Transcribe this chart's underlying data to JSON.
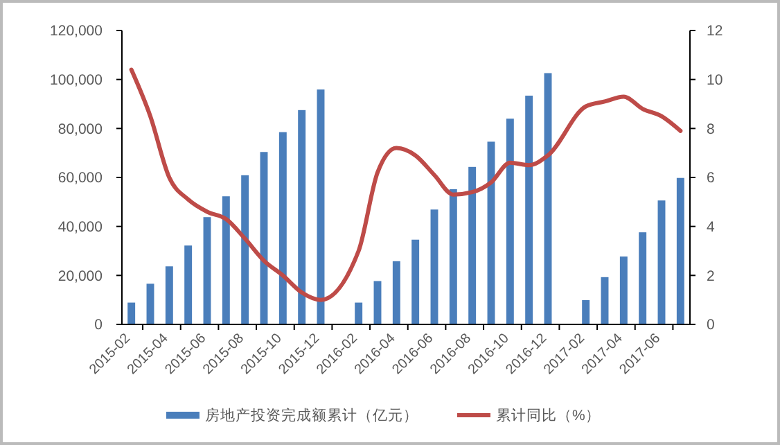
{
  "chart_data": {
    "type": "bar",
    "categories": [
      "2015-02",
      null,
      "2015-04",
      null,
      "2015-06",
      null,
      "2015-08",
      null,
      "2015-10",
      null,
      "2015-12",
      null,
      "2016-02",
      null,
      "2016-04",
      null,
      "2016-06",
      null,
      "2016-08",
      null,
      "2016-10",
      null,
      "2016-12",
      null,
      "2017-02",
      null,
      "2017-04",
      null,
      "2017-06",
      null
    ],
    "series": [
      {
        "name": "房地产投资完成额累计（亿元）",
        "color": "#4a7ebb",
        "values": [
          8900,
          16600,
          23700,
          32200,
          43800,
          52300,
          60900,
          70400,
          78500,
          87500,
          95900,
          null,
          8900,
          17700,
          25800,
          34600,
          46900,
          55200,
          64300,
          74600,
          84000,
          93400,
          102600,
          null,
          9900,
          19300,
          27700,
          37600,
          50600,
          59800
        ]
      },
      {
        "name": "累计同比（%）",
        "type": "line",
        "axis": "y2",
        "color": "#be4b48",
        "values": [
          10.4,
          8.5,
          6.0,
          5.1,
          4.6,
          4.3,
          3.5,
          2.6,
          2.0,
          1.3,
          1.0,
          null,
          3.0,
          6.2,
          7.2,
          6.9,
          6.1,
          5.3,
          5.4,
          5.8,
          6.6,
          6.5,
          6.9,
          null,
          8.9,
          9.1,
          9.3,
          8.8,
          8.5,
          7.9
        ]
      }
    ],
    "ylim": [
      0,
      120000
    ],
    "yticks": [
      {
        "value": 0,
        "label": "0"
      },
      {
        "value": 20000,
        "label": "20,000"
      },
      {
        "value": 40000,
        "label": "40,000"
      },
      {
        "value": 60000,
        "label": "60,000"
      },
      {
        "value": 80000,
        "label": "80,000"
      },
      {
        "value": 100000,
        "label": "100,000"
      },
      {
        "value": 120000,
        "label": "120,000"
      }
    ],
    "y2lim": [
      0,
      12
    ],
    "y2ticks": [
      0,
      2,
      4,
      6,
      8,
      10,
      12
    ],
    "grid": false,
    "legend": "bottom",
    "line_style": "solid",
    "marker": "none"
  }
}
